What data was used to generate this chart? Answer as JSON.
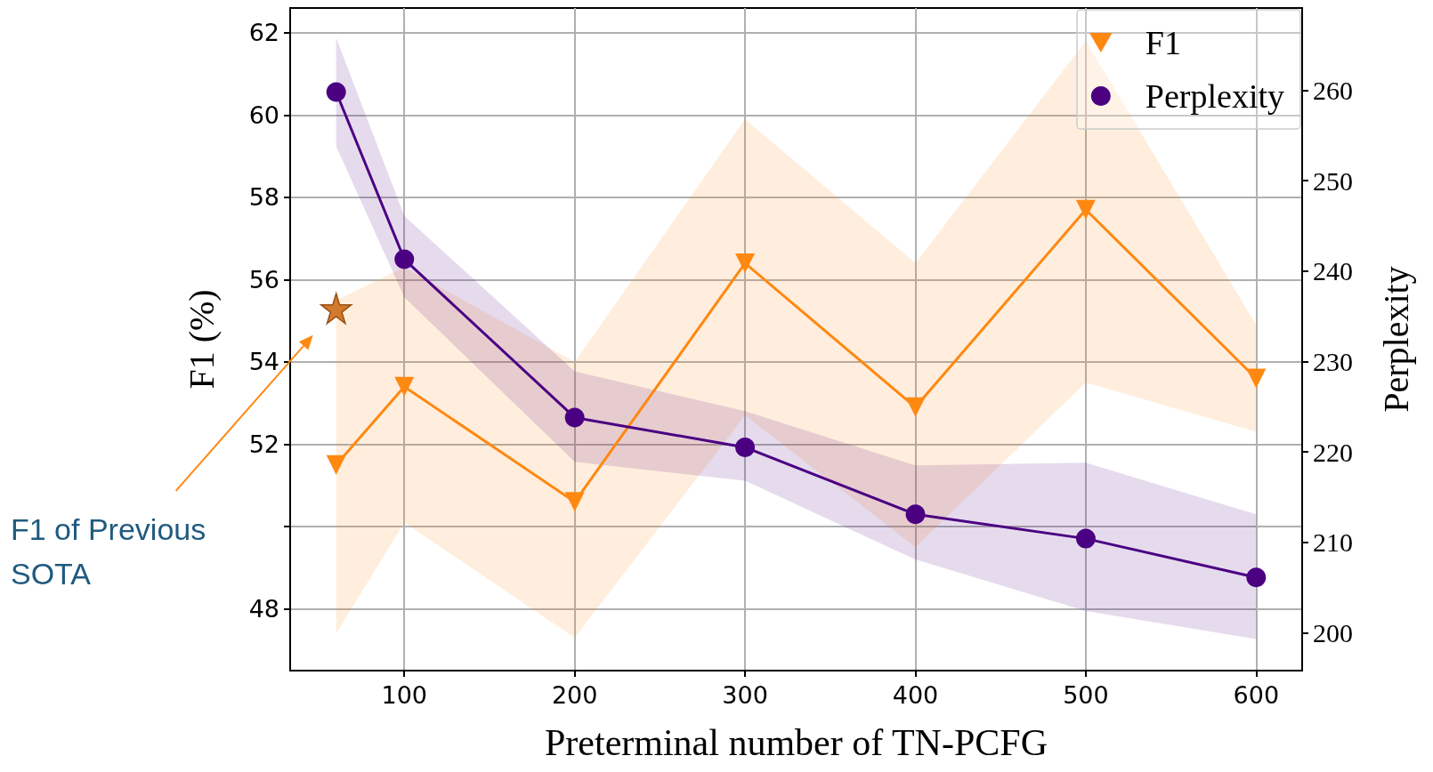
{
  "chart_data": {
    "type": "line",
    "xlabel": "Preterminal number of TN-PCFG",
    "ylabel": "F1 (%)",
    "y2label": "Perplexity",
    "x": [
      60,
      100,
      200,
      300,
      400,
      500,
      600
    ],
    "xlim": [
      33,
      627
    ],
    "xticks": [
      100,
      200,
      300,
      400,
      500,
      600
    ],
    "ylim": [
      46.5,
      62.6
    ],
    "yticks": [
      48,
      {
        "value": 50,
        "label": null
      },
      52,
      54,
      56,
      58,
      60,
      62
    ],
    "y2lim": [
      195.8,
      269.1
    ],
    "y2ticks": [
      200,
      210,
      220,
      230,
      240,
      250,
      260
    ],
    "grid": true,
    "legend": "top right",
    "series": [
      {
        "name": "F1",
        "color": "#ff8811",
        "marker": "triangle",
        "values": [
          51.5,
          53.4,
          50.6,
          56.4,
          52.9,
          57.7,
          53.6
        ],
        "lower": [
          47.4,
          50.1,
          47.3,
          52.7,
          49.5,
          53.5,
          52.3
        ],
        "upper": [
          55.5,
          56.3,
          54.0,
          59.9,
          56.4,
          61.8,
          54.9
        ]
      },
      {
        "name": "Perplexity",
        "color": "#4b0082",
        "marker": "circle",
        "axis": "y2",
        "values": [
          259.8,
          241.3,
          223.8,
          220.5,
          213.1,
          210.4,
          206.1
        ],
        "lower": [
          253.8,
          237.1,
          218.9,
          216.8,
          208.1,
          202.4,
          199.3
        ],
        "upper": [
          265.8,
          246.1,
          228.9,
          224.5,
          218.5,
          218.8,
          213.1
        ]
      },
      {
        "type": "scatter",
        "color": "#c8640a",
        "marker": "star",
        "x": [
          60
        ],
        "values": [
          55.3
        ]
      }
    ],
    "annotations": [
      "F1 of Previous SOTA"
    ]
  }
}
